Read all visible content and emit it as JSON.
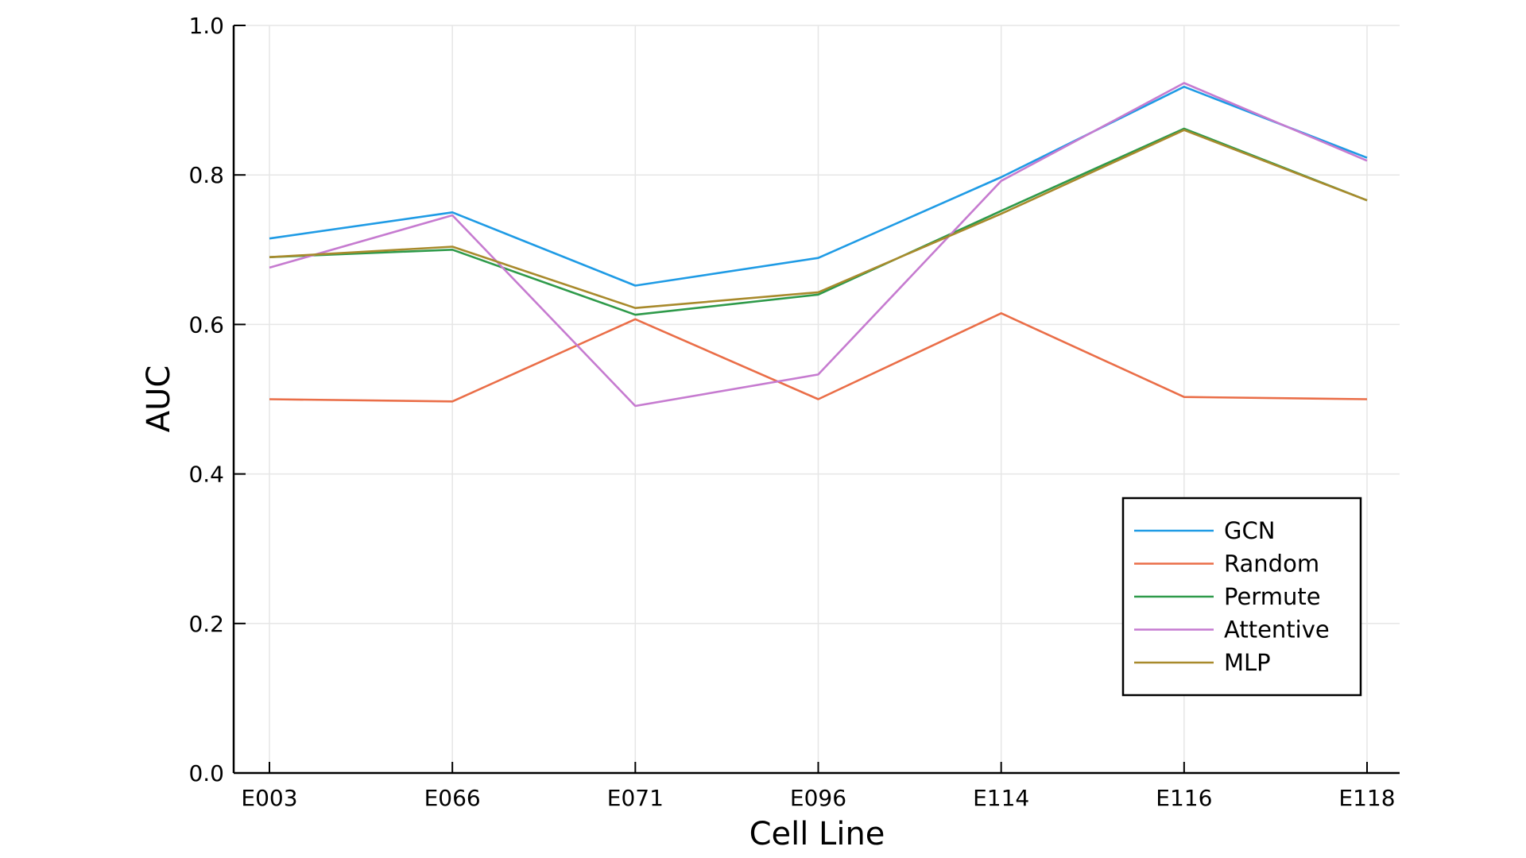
{
  "chart_data": {
    "type": "line",
    "title": "",
    "xlabel": "Cell Line",
    "ylabel": "AUC",
    "categories": [
      "E003",
      "E066",
      "E071",
      "E096",
      "E114",
      "E116",
      "E118"
    ],
    "ylim": [
      0.0,
      1.0
    ],
    "yticks": [
      "0.0",
      "0.2",
      "0.4",
      "0.6",
      "0.8",
      "1.0"
    ],
    "grid": true,
    "legend_position": "bottom-right",
    "series": [
      {
        "name": "GCN",
        "color": "#1f9be5",
        "values": [
          0.715,
          0.75,
          0.652,
          0.689,
          0.797,
          0.918,
          0.823
        ]
      },
      {
        "name": "Random",
        "color": "#ea6e48",
        "values": [
          0.5,
          0.497,
          0.607,
          0.5,
          0.615,
          0.503,
          0.5
        ]
      },
      {
        "name": "Permute",
        "color": "#2e9a4a",
        "values": [
          0.69,
          0.7,
          0.613,
          0.64,
          0.752,
          0.862,
          0.766
        ]
      },
      {
        "name": "Attentive",
        "color": "#c67bd0",
        "values": [
          0.676,
          0.746,
          0.491,
          0.533,
          0.792,
          0.923,
          0.819
        ]
      },
      {
        "name": "MLP",
        "color": "#a88a2c",
        "values": [
          0.69,
          0.704,
          0.622,
          0.643,
          0.748,
          0.86,
          0.766
        ]
      }
    ]
  }
}
